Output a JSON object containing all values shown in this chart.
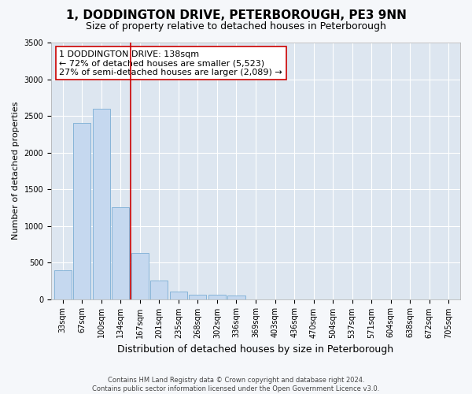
{
  "title": "1, DODDINGTON DRIVE, PETERBOROUGH, PE3 9NN",
  "subtitle": "Size of property relative to detached houses in Peterborough",
  "xlabel": "Distribution of detached houses by size in Peterborough",
  "ylabel": "Number of detached properties",
  "footer_line1": "Contains HM Land Registry data © Crown copyright and database right 2024.",
  "footer_line2": "Contains public sector information licensed under the Open Government Licence v3.0.",
  "categories": [
    "33sqm",
    "67sqm",
    "100sqm",
    "134sqm",
    "167sqm",
    "201sqm",
    "235sqm",
    "268sqm",
    "302sqm",
    "336sqm",
    "369sqm",
    "403sqm",
    "436sqm",
    "470sqm",
    "504sqm",
    "537sqm",
    "571sqm",
    "604sqm",
    "638sqm",
    "672sqm",
    "705sqm"
  ],
  "values": [
    390,
    2400,
    2600,
    1250,
    630,
    250,
    100,
    65,
    60,
    50,
    0,
    0,
    0,
    0,
    0,
    0,
    0,
    0,
    0,
    0,
    0
  ],
  "bar_color": "#c5d8ef",
  "bar_edge_color": "#7aadd4",
  "vline_color": "#cc0000",
  "annotation_text": "1 DODDINGTON DRIVE: 138sqm\n← 72% of detached houses are smaller (5,523)\n27% of semi-detached houses are larger (2,089) →",
  "annotation_box_color": "#ffffff",
  "annotation_box_edgecolor": "#cc0000",
  "ylim": [
    0,
    3500
  ],
  "yticks": [
    0,
    500,
    1000,
    1500,
    2000,
    2500,
    3000,
    3500
  ],
  "fig_bg_color": "#f5f7fa",
  "plot_bg_color": "#dde6f0",
  "grid_color": "#ffffff",
  "title_fontsize": 11,
  "subtitle_fontsize": 9,
  "ylabel_fontsize": 8,
  "xlabel_fontsize": 9,
  "annotation_fontsize": 8,
  "tick_fontsize": 7
}
